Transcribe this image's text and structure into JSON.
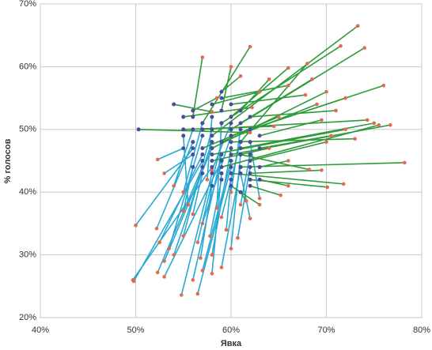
{
  "chart_data": {
    "type": "scatter",
    "x_label": "Явка",
    "y_label": "% голосов",
    "xlim": [
      40,
      80
    ],
    "xticks": [
      {
        "value": 40,
        "label": "40%"
      },
      {
        "value": 50,
        "label": "50%"
      },
      {
        "value": 60,
        "label": "60%"
      },
      {
        "value": 70,
        "label": "70%"
      },
      {
        "value": 80,
        "label": "80%"
      }
    ],
    "ylim": [
      20,
      70
    ],
    "yticks": [
      {
        "value": 20,
        "label": "20%"
      },
      {
        "value": 30,
        "label": "30%"
      },
      {
        "value": 40,
        "label": "40%"
      },
      {
        "value": 50,
        "label": "50%"
      },
      {
        "value": 60,
        "label": "60%"
      },
      {
        "value": 70,
        "label": "70%"
      }
    ],
    "grid": true,
    "start_color": "#4b4b9e",
    "end_color": "#e26a4e",
    "series": [
      {
        "color": "#29a9d2",
        "from_x": [
          58,
          57,
          56,
          56,
          57,
          58,
          57,
          59,
          58,
          60,
          59,
          60,
          59,
          61,
          58,
          57,
          58,
          59,
          60,
          61,
          60,
          61,
          62,
          61,
          57,
          56,
          55,
          56,
          55,
          59,
          62,
          58,
          60,
          61,
          59,
          60,
          57,
          56,
          62,
          58
        ],
        "from_y": [
          44,
          45,
          47,
          48,
          46,
          47,
          44,
          45,
          43,
          44,
          46,
          45,
          43,
          44,
          48,
          49,
          50,
          48,
          47,
          46,
          49,
          48,
          46,
          50,
          51,
          50,
          49,
          46,
          47,
          51,
          48,
          52,
          51,
          43,
          42,
          42,
          43,
          44,
          44,
          41
        ],
        "to_x": [
          49.7,
          49.8,
          50,
          52.2,
          52.5,
          53,
          52.3,
          53,
          54.8,
          56.5,
          56,
          57,
          58,
          59,
          54,
          53.5,
          55,
          56.5,
          58,
          60,
          57,
          59,
          61,
          60,
          55,
          54,
          55.5,
          53,
          52.3,
          58.5,
          63,
          57.5,
          58,
          62,
          57.8,
          59.5,
          56,
          55,
          60.7,
          56.8
        ],
        "to_y": [
          26,
          25.8,
          34.7,
          34.2,
          32,
          29,
          27.2,
          26.5,
          23.6,
          23.8,
          26,
          27.5,
          27,
          28,
          30,
          31,
          33,
          32,
          30,
          31,
          35,
          36,
          38,
          40,
          40,
          41,
          38,
          43,
          45.2,
          37.5,
          39,
          42,
          43.5,
          35.8,
          33,
          34,
          36.5,
          37,
          32.7,
          29.5
        ]
      },
      {
        "color": "#2e9a3a",
        "from_x": [
          58,
          60,
          59,
          61,
          60,
          57,
          56,
          59,
          61,
          60,
          58,
          62,
          59,
          57,
          61,
          60,
          58,
          59,
          62,
          61,
          60,
          62,
          61,
          63,
          62,
          60,
          61,
          58,
          57,
          55,
          50.3,
          54,
          55,
          58,
          59,
          60,
          62,
          63,
          61,
          59,
          56,
          63,
          60,
          62,
          63
        ],
        "from_y": [
          49,
          50,
          51,
          48,
          52,
          51,
          52,
          53,
          51,
          49,
          47,
          50,
          48,
          50,
          47,
          46,
          46,
          44,
          45,
          44,
          43,
          42,
          46,
          44,
          41,
          41,
          40,
          45,
          47,
          50,
          50,
          54,
          52,
          54,
          55,
          54,
          52,
          49,
          53,
          56,
          53,
          47,
          48,
          43,
          42
        ],
        "to_x": [
          73.3,
          74,
          71.5,
          68,
          66,
          62,
          57,
          60,
          68.5,
          76,
          70,
          72,
          69,
          74.3,
          75,
          76.7,
          72,
          75.5,
          70,
          78.2,
          71.8,
          70.1,
          68.2,
          66,
          65.2,
          63,
          61.6,
          64,
          65,
          64.5,
          62,
          58,
          62.2,
          63,
          66,
          67.8,
          71,
          69.5,
          64,
          61,
          58.5,
          70.5,
          73,
          69.5,
          66
        ],
        "to_y": [
          66.5,
          63,
          63.3,
          60.5,
          59.8,
          63.2,
          61.5,
          60,
          58,
          57,
          56,
          55,
          54,
          51.5,
          51,
          50.7,
          50,
          50.7,
          48,
          44.7,
          41.3,
          40.8,
          43.6,
          45,
          39.5,
          38,
          38.6,
          47,
          52,
          50.5,
          49.5,
          52.8,
          53.5,
          56,
          57,
          55.5,
          53,
          51.5,
          58,
          58.5,
          55,
          49,
          48.5,
          43.5,
          41
        ]
      }
    ]
  }
}
